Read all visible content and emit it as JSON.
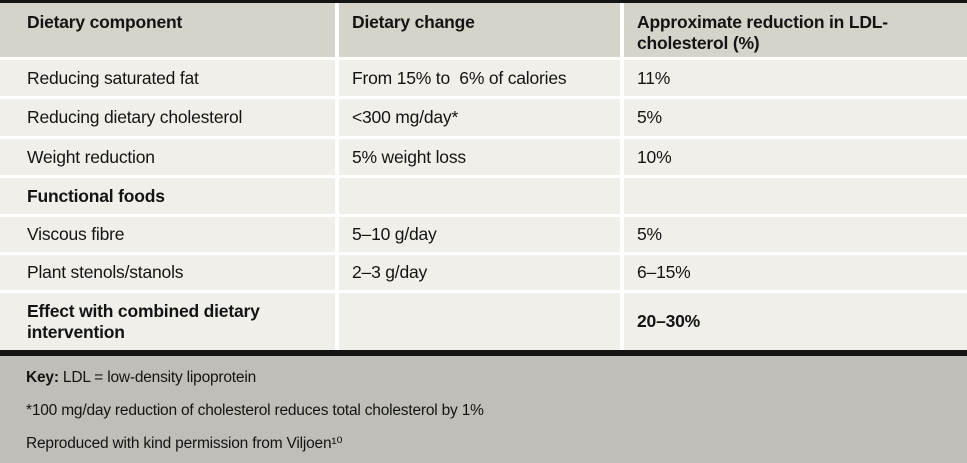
{
  "colors": {
    "border_dark": "#141414",
    "header_bg": "#d6d3ca",
    "row_bg": "#f1efea",
    "footer_bg": "#c0beb8",
    "text": "#141414"
  },
  "table": {
    "columns": [
      "Dietary component",
      "Dietary change",
      "Approximate reduction in LDL-cholesterol (%)"
    ],
    "rows": [
      {
        "component": "Reducing saturated fat",
        "change": "From 15% to  6% of calories",
        "reduction": "11%"
      },
      {
        "component": "Reducing dietary cholesterol",
        "change": "<300 mg/day*",
        "reduction": "5%"
      },
      {
        "component": "Weight reduction",
        "change": "5% weight loss",
        "reduction": "10%"
      },
      {
        "component": "Functional foods",
        "change": "",
        "reduction": ""
      },
      {
        "component": "Viscous fibre",
        "change": "5–10 g/day",
        "reduction": "5%"
      },
      {
        "component": "Plant stenols/stanols",
        "change": "2–3 g/day",
        "reduction": "6–15%"
      },
      {
        "component": "Effect with combined dietary intervention",
        "change": "",
        "reduction": "20–30%"
      }
    ],
    "footnotes": {
      "key_label": "Key:",
      "key_text": " LDL = low-density lipoprotein",
      "asterisk_note": "*100 mg/day reduction of cholesterol reduces total cholesterol by 1%",
      "attribution": "Reproduced with kind permission from Viljoen¹⁰"
    }
  }
}
